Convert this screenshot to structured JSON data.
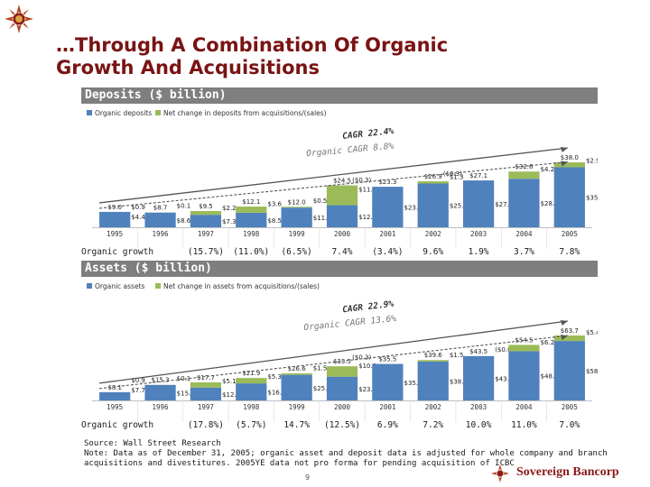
{
  "page": {
    "title_line1": "…Through A Combination Of Organic",
    "title_line2": "Growth And Acquisitions",
    "source": "Source: Wall Street Research",
    "note_line1": "Note: Data as of December 31, 2005; organic asset and deposit data is adjusted for whole company and branch",
    "note_line2": "acquisitions and divestitures. 2005YE data not pro forma for pending acquisition of ICBC",
    "page_number": "9",
    "brand": "Sovereign Bancorp",
    "colors": {
      "title": "#7a1313",
      "organic": "#4f81bd",
      "acquired": "#9bbb59",
      "header_bar": "#7f7f7f",
      "brand": "#8b1a1a"
    }
  },
  "chart_data": [
    {
      "type": "bar",
      "stacked": true,
      "header": "Deposits ($ billion)",
      "categories": [
        "1995",
        "1996",
        "1997",
        "1998",
        "1999",
        "2000",
        "2001",
        "2002",
        "2003",
        "2004",
        "2005"
      ],
      "series": [
        {
          "name": "Organic deposits",
          "values": [
            9.0,
            8.6,
            7.3,
            8.5,
            11.5,
            12.9,
            23.7,
            25.6,
            27.4,
            28.4,
            35.1
          ],
          "labels": [
            "",
            "$8.6",
            "$7.3",
            "$8.5",
            "$11.5",
            "$12.9",
            "$23.7",
            "$25.6",
            "$27.4",
            "$28.4",
            "$35.1"
          ]
        },
        {
          "name": "Net change in deposits from acquisitions/(sales)",
          "values": [
            0,
            0.1,
            2.2,
            3.6,
            0.5,
            11.6,
            -0.3,
            1.3,
            -0.3,
            4.2,
            2.9
          ],
          "labels": [
            "",
            "$0.1",
            "$2.2",
            "$3.6",
            "$0.5",
            "$11.6",
            "($0.3)",
            "$1.3",
            "($0.3)",
            "$4.2",
            "$2.9"
          ]
        }
      ],
      "totals": [
        9.0,
        8.7,
        9.5,
        12.1,
        12.0,
        24.5,
        23.3,
        26.9,
        27.1,
        32.6,
        38.0
      ],
      "total_labels": [
        "$9.0",
        "$8.7",
        "$9.5",
        "$12.1",
        "$12.0",
        "$24.5",
        "$23.3",
        "$26.9",
        "$27.1",
        "$32.6",
        "$38.0"
      ],
      "extra_labels": [
        "$0.9",
        "$4.4"
      ],
      "cagr_label": "CAGR 22.4%",
      "organic_cagr_label": "Organic CAGR 8.8%",
      "growth_label": "Organic growth",
      "growth_values": [
        "(15.7%)",
        "(11.0%)",
        "(6.5%)",
        "7.4%",
        "(3.4%)",
        "9.6%",
        "1.9%",
        "3.7%",
        "7.8%"
      ],
      "legend_placement": "top-left",
      "ylim": [
        0,
        40
      ]
    },
    {
      "type": "bar",
      "stacked": true,
      "header": "Assets ($ billion)",
      "categories": [
        "1995",
        "1996",
        "1997",
        "1998",
        "1999",
        "2000",
        "2001",
        "2002",
        "2003",
        "2004",
        "2005"
      ],
      "series": [
        {
          "name": "Organic assets",
          "values": [
            8.1,
            15.2,
            12.6,
            16.7,
            25.1,
            23.3,
            35.8,
            38.1,
            43.5,
            48.3,
            58.3
          ],
          "labels": [
            "",
            "$15.2",
            "$12.6",
            "$16.7",
            "$25.1",
            "$23.3",
            "$35.8",
            "$38.1",
            "$43.5",
            "$48.3",
            "$58.3"
          ]
        },
        {
          "name": "Net change in assets from acquisitions/(sales)",
          "values": [
            0,
            0.1,
            5.1,
            5.3,
            1.5,
            10.2,
            -0.3,
            1.5,
            -0.0,
            6.2,
            5.4
          ],
          "labels": [
            "",
            "$0.1",
            "$5.1",
            "$5.3",
            "$1.5",
            "$10.2",
            "($0.3)",
            "$1.5",
            "($0.0)",
            "$6.2",
            "$5.4"
          ]
        }
      ],
      "totals": [
        8.1,
        15.3,
        17.7,
        21.9,
        26.6,
        33.5,
        35.5,
        39.6,
        43.5,
        54.5,
        63.7
      ],
      "total_labels": [
        "$8.1",
        "$15.3",
        "$17.7",
        "$21.9",
        "$26.6",
        "$33.5",
        "$35.5",
        "$39.6",
        "$43.5",
        "$54.5",
        "$63.7"
      ],
      "extra_labels": [
        "$0.9",
        "$7.7"
      ],
      "cagr_label": "CAGR 22.9%",
      "organic_cagr_label": "Organic CAGR 13.6%",
      "growth_label": "Organic growth",
      "growth_values": [
        "(17.8%)",
        "(5.7%)",
        "14.7%",
        "(12.5%)",
        "6.9%",
        "7.2%",
        "10.0%",
        "11.0%",
        "7.0%"
      ],
      "legend_placement": "top-left",
      "ylim": [
        0,
        70
      ]
    }
  ]
}
